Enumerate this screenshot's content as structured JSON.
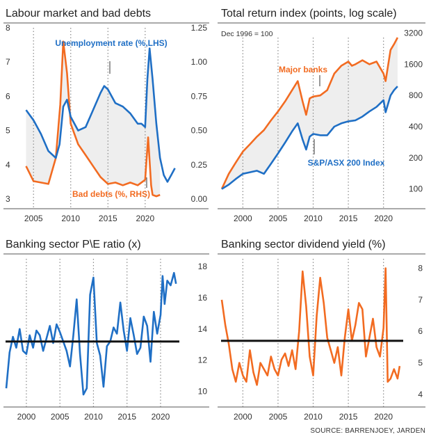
{
  "source": "SOURCE: BARRENJOEY, JARDEN",
  "colors": {
    "blue": "#1f6fc5",
    "orange": "#f26b21",
    "shade": "#eeeeee",
    "black": "#111111"
  },
  "chart_data": [
    {
      "type": "line",
      "title": "Labour market and bad debts",
      "x_ticks": [
        "2005",
        "2010",
        "2015",
        "2020"
      ],
      "y_left_ticks": [
        "3",
        "4",
        "5",
        "6",
        "7",
        "8"
      ],
      "y_right_ticks": [
        "0.00",
        "0.25",
        "0.50",
        "0.75",
        "1.00",
        "1.25"
      ],
      "ylim_left": [
        3,
        8
      ],
      "ylim_right": [
        0,
        1.25
      ],
      "xlim": [
        2003.3,
        2024.5
      ],
      "series": [
        {
          "name": "Unemployment rate (%,LHS)",
          "axis": "left",
          "x": [
            2004.0,
            2005.0,
            2006.0,
            2007.0,
            2008.0,
            2008.5,
            2009.0,
            2009.5,
            2010.0,
            2011.0,
            2012.0,
            2013.0,
            2014.0,
            2014.5,
            2015.0,
            2016.0,
            2017.0,
            2018.0,
            2019.0,
            2019.5,
            2020.0,
            2020.3,
            2020.6,
            2021.0,
            2021.5,
            2022.0,
            2022.5,
            2023.0,
            2023.5,
            2024.0
          ],
          "y": [
            5.6,
            5.3,
            4.9,
            4.4,
            4.2,
            4.6,
            5.7,
            5.9,
            5.4,
            5.0,
            5.1,
            5.6,
            6.1,
            6.3,
            6.2,
            5.8,
            5.7,
            5.5,
            5.2,
            5.2,
            5.1,
            6.5,
            7.4,
            6.5,
            5.2,
            4.2,
            3.7,
            3.5,
            3.7,
            3.9
          ]
        },
        {
          "name": "Bad debts (%, RHS)",
          "axis": "right",
          "x": [
            2004.0,
            2005.0,
            2006.0,
            2007.0,
            2008.0,
            2008.6,
            2009.0,
            2009.5,
            2010.0,
            2011.0,
            2012.0,
            2013.0,
            2014.0,
            2015.0,
            2016.0,
            2017.0,
            2018.0,
            2019.0,
            2020.0,
            2020.4,
            2020.8,
            2021.0,
            2021.5,
            2022.0
          ],
          "y": [
            0.24,
            0.13,
            0.12,
            0.11,
            0.3,
            0.69,
            1.15,
            0.92,
            0.55,
            0.4,
            0.32,
            0.24,
            0.16,
            0.11,
            0.12,
            0.1,
            0.12,
            0.1,
            0.14,
            0.45,
            0.1,
            0.03,
            0.02,
            0.03
          ]
        }
      ],
      "annotations": [
        "Unemployment rate (%,LHS)",
        "Bad debts (%, RHS)"
      ]
    },
    {
      "type": "line",
      "title": "Total return index (points, log scale)",
      "subtitle": "Dec 1996 = 100",
      "log_scale": true,
      "x_ticks": [
        "2000",
        "2005",
        "2010",
        "2015",
        "2020"
      ],
      "y_ticks": [
        "100",
        "200",
        "400",
        "800",
        "1600",
        "3200"
      ],
      "ylim": [
        80,
        3600
      ],
      "xlim": [
        1996.9,
        2022.8
      ],
      "series": [
        {
          "name": "Major banks",
          "x": [
            1997.0,
            1998.0,
            1999.0,
            2000.0,
            2001.0,
            2002.0,
            2003.0,
            2004.0,
            2005.0,
            2006.0,
            2007.0,
            2007.8,
            2008.5,
            2009.0,
            2009.5,
            2010.0,
            2011.0,
            2012.0,
            2013.0,
            2014.0,
            2015.0,
            2015.5,
            2016.0,
            2017.0,
            2018.0,
            2019.0,
            2020.0,
            2020.3,
            2021.0,
            2021.5,
            2022.0
          ],
          "y": [
            100,
            140,
            180,
            230,
            270,
            320,
            370,
            460,
            560,
            700,
            900,
            1100,
            700,
            520,
            750,
            780,
            800,
            900,
            1300,
            1550,
            1700,
            1550,
            1600,
            1750,
            1600,
            1700,
            1300,
            1100,
            2200,
            2500,
            2900
          ]
        },
        {
          "name": "S&P/ASX 200 Index",
          "x": [
            1997.0,
            1998.0,
            1999.0,
            2000.0,
            2001.0,
            2002.0,
            2003.0,
            2004.0,
            2005.0,
            2006.0,
            2007.0,
            2007.8,
            2008.5,
            2009.0,
            2009.5,
            2010.0,
            2011.0,
            2012.0,
            2013.0,
            2014.0,
            2015.0,
            2016.0,
            2017.0,
            2018.0,
            2019.0,
            2020.0,
            2020.3,
            2021.0,
            2021.5,
            2022.0
          ],
          "y": [
            100,
            110,
            125,
            140,
            145,
            150,
            140,
            175,
            220,
            280,
            360,
            430,
            300,
            240,
            320,
            340,
            330,
            330,
            400,
            430,
            450,
            460,
            500,
            560,
            620,
            720,
            550,
            800,
            900,
            980
          ]
        }
      ],
      "annotations": [
        "Major banks",
        "S&P/ASX 200 Index"
      ]
    },
    {
      "type": "line",
      "title": "Banking sector P\\E ratio (x)",
      "x_ticks": [
        "2000",
        "2005",
        "2010",
        "2015",
        "2020"
      ],
      "y_ticks": [
        "10",
        "12",
        "14",
        "16",
        "18"
      ],
      "ylim": [
        9,
        18.5
      ],
      "xlim": [
        1996.9,
        2022.8
      ],
      "reference_line": 13.2,
      "series": [
        {
          "name": "",
          "x": [
            1997.0,
            1997.5,
            1998.0,
            1998.5,
            1999.0,
            1999.5,
            2000.0,
            2000.5,
            2001.0,
            2001.5,
            2002.0,
            2002.5,
            2003.0,
            2003.5,
            2004.0,
            2004.5,
            2005.0,
            2005.5,
            2006.0,
            2006.5,
            2007.0,
            2007.5,
            2008.0,
            2008.5,
            2009.0,
            2009.5,
            2010.0,
            2010.5,
            2011.0,
            2011.5,
            2012.0,
            2012.5,
            2013.0,
            2013.5,
            2014.0,
            2014.5,
            2015.0,
            2015.5,
            2016.0,
            2016.5,
            2017.0,
            2017.5,
            2018.0,
            2018.5,
            2019.0,
            2019.5,
            2020.0,
            2020.3,
            2020.6,
            2021.0,
            2021.5,
            2022.0,
            2022.3
          ],
          "y": [
            10.2,
            12.5,
            13.5,
            12.8,
            14.0,
            12.6,
            12.4,
            13.6,
            12.8,
            13.9,
            13.6,
            12.6,
            13.4,
            14.2,
            13.1,
            14.3,
            13.8,
            13.2,
            12.6,
            11.6,
            13.6,
            15.9,
            12.4,
            9.8,
            10.2,
            16.2,
            17.3,
            13.1,
            12.3,
            10.3,
            12.9,
            13.2,
            14.1,
            13.7,
            15.7,
            13.9,
            12.6,
            14.7,
            13.6,
            12.4,
            12.8,
            14.8,
            14.2,
            11.9,
            15.1,
            13.7,
            14.9,
            17.4,
            15.6,
            17.1,
            16.8,
            17.6,
            16.9
          ]
        }
      ]
    },
    {
      "type": "line",
      "title": "Banking sector dividend yield (%)",
      "x_ticks": [
        "2000",
        "2005",
        "2010",
        "2015",
        "2020"
      ],
      "y_ticks": [
        "4",
        "5",
        "6",
        "7",
        "8"
      ],
      "ylim": [
        3.6,
        8.3
      ],
      "xlim": [
        1996.9,
        2022.8
      ],
      "reference_line": 5.7,
      "series": [
        {
          "name": "",
          "x": [
            1997.0,
            1997.5,
            1998.0,
            1998.5,
            1999.0,
            1999.5,
            2000.0,
            2000.5,
            2001.0,
            2001.5,
            2002.0,
            2002.5,
            2003.0,
            2003.5,
            2004.0,
            2004.5,
            2005.0,
            2005.5,
            2006.0,
            2006.5,
            2007.0,
            2007.5,
            2008.0,
            2008.5,
            2009.0,
            2009.5,
            2010.0,
            2010.5,
            2011.0,
            2011.5,
            2012.0,
            2012.5,
            2013.0,
            2013.5,
            2014.0,
            2014.5,
            2015.0,
            2015.5,
            2016.0,
            2016.5,
            2017.0,
            2017.5,
            2018.0,
            2018.5,
            2019.0,
            2019.5,
            2020.0,
            2020.3,
            2020.6,
            2021.0,
            2021.5,
            2022.0,
            2022.3
          ],
          "y": [
            7.0,
            6.2,
            5.6,
            4.8,
            4.4,
            5.0,
            4.6,
            4.4,
            5.4,
            4.7,
            4.3,
            5.0,
            4.8,
            4.6,
            5.2,
            4.8,
            4.6,
            5.1,
            5.3,
            4.9,
            5.4,
            4.8,
            6.0,
            7.9,
            6.8,
            5.2,
            4.6,
            6.5,
            7.7,
            6.9,
            5.8,
            5.4,
            5.0,
            5.5,
            4.6,
            5.8,
            6.7,
            5.7,
            6.2,
            6.9,
            6.7,
            5.2,
            5.8,
            6.4,
            5.5,
            5.2,
            6.1,
            8.0,
            4.4,
            4.5,
            4.8,
            4.5,
            4.9
          ]
        }
      ]
    }
  ]
}
